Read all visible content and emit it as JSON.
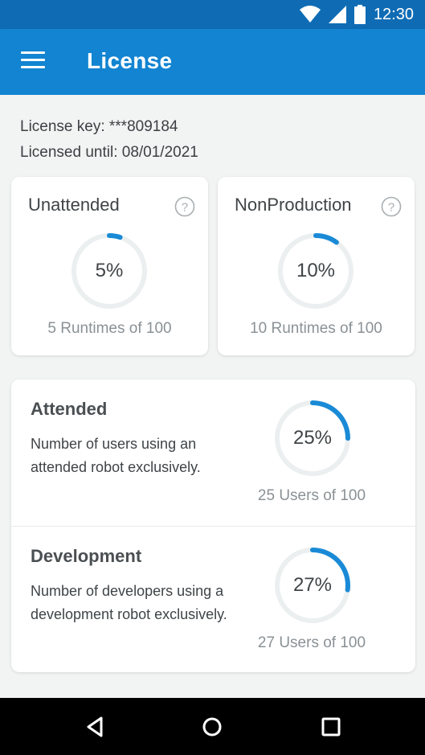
{
  "status_bar": {
    "time": "12:30",
    "icons": [
      "wifi-icon",
      "signal-icon",
      "battery-icon"
    ]
  },
  "app_bar": {
    "title": "License",
    "menu_icon": "hamburger-menu-icon"
  },
  "license": {
    "key_line": "License key: ***809184",
    "until_line": "Licensed until: 08/01/2021"
  },
  "cards": [
    {
      "title": "Unattended",
      "percent_label": "5%",
      "percent": 5,
      "caption": "5 Runtimes of 100"
    },
    {
      "title": "NonProduction",
      "percent_label": "10%",
      "percent": 10,
      "caption": "10 Runtimes of 100"
    }
  ],
  "sections": [
    {
      "title": "Attended",
      "description": "Number of users using an attended robot exclusively.",
      "percent_label": "25%",
      "percent": 25,
      "caption": "25 Users of 100"
    },
    {
      "title": "Development",
      "description": "Number of developers using a development robot exclusively.",
      "percent_label": "27%",
      "percent": 27,
      "caption": "27 Users of 100"
    }
  ],
  "nav_bar": {
    "items": [
      "back-icon",
      "home-icon",
      "recents-icon"
    ]
  },
  "colors": {
    "accent": "#1284d1",
    "status_bar": "#0f6cb4",
    "gauge_track": "#eceff0",
    "gauge_fill": "#1a8ad6"
  }
}
